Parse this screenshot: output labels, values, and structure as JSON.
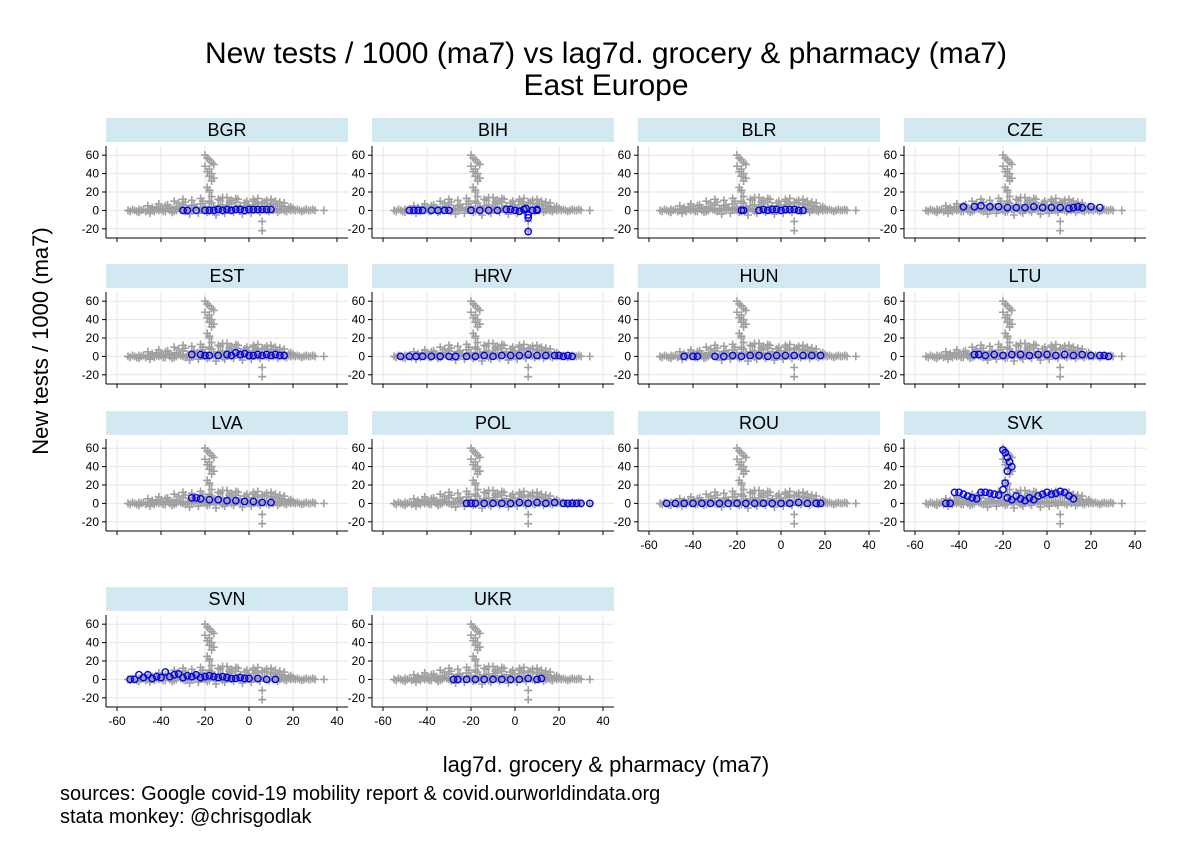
{
  "chart_data": {
    "type": "scatter",
    "title": "New tests / 1000 (ma7) vs lag7d. grocery & pharmacy (ma7)",
    "subtitle": "East Europe",
    "xlabel": "lag7d. grocery & pharmacy (ma7)",
    "ylabel": "New tests / 1000 (ma7)",
    "xlim": [
      -65,
      45
    ],
    "ylim": [
      -30,
      70
    ],
    "x_ticks": [
      "-60",
      "-40",
      "-20",
      "0",
      "20",
      "40"
    ],
    "y_ticks": [
      "60",
      "40",
      "20",
      "0",
      "-20"
    ],
    "grid": true,
    "background_series_marker": "plus",
    "highlight_series_marker": "circle",
    "colors": {
      "background": "#a0a0a0",
      "highlight": "#0000ee",
      "panel_header": "#d3e9f1",
      "grid": "#e6e6e6"
    },
    "note_lines": [
      "sources: Google covid-19 mobility report & covid.ourworldindata.org",
      "stata monkey: @chrisgodlak"
    ],
    "panels": [
      {
        "name": "BGR",
        "x": [
          -30,
          -28,
          -24,
          -20,
          -18,
          -16,
          -14,
          -12,
          -10,
          -8,
          -6,
          -4,
          -2,
          0,
          2,
          4,
          6,
          8,
          10
        ],
        "y": [
          0,
          0,
          0,
          0,
          0,
          0,
          1,
          0,
          1,
          0,
          1,
          1,
          0,
          1,
          1,
          1,
          1,
          1,
          1
        ]
      },
      {
        "name": "BIH",
        "x": [
          -48,
          -46,
          -44,
          -42,
          -38,
          -35,
          -32,
          -30,
          -20,
          -16,
          -12,
          -8,
          -4,
          -2,
          0,
          2,
          4,
          5,
          6,
          6,
          6,
          8,
          10,
          10
        ],
        "y": [
          0,
          0,
          0,
          0,
          0,
          0,
          0,
          0,
          0,
          0,
          0,
          0,
          1,
          1,
          0,
          -1,
          1,
          2,
          -5,
          -8,
          -23,
          0,
          1,
          0
        ]
      },
      {
        "name": "BLR",
        "x": [
          -18,
          -17,
          -10,
          -8,
          -6,
          -4,
          -2,
          0,
          2,
          4,
          6,
          8,
          10
        ],
        "y": [
          0,
          0,
          0,
          1,
          0,
          1,
          1,
          0,
          1,
          1,
          1,
          0,
          0
        ]
      },
      {
        "name": "CZE",
        "x": [
          -38,
          -33,
          -30,
          -26,
          -22,
          -18,
          -14,
          -10,
          -6,
          -2,
          2,
          6,
          10,
          12,
          14,
          16,
          20,
          24
        ],
        "y": [
          4,
          4,
          5,
          4,
          4,
          3,
          3,
          3,
          4,
          3,
          3,
          3,
          2,
          3,
          4,
          3,
          4,
          3
        ]
      },
      {
        "name": "EST",
        "x": [
          -26,
          -22,
          -20,
          -18,
          -14,
          -10,
          -8,
          -6,
          -4,
          -2,
          0,
          2,
          4,
          6,
          8,
          10,
          12,
          14,
          16
        ],
        "y": [
          2,
          2,
          1,
          1,
          1,
          2,
          1,
          4,
          2,
          3,
          1,
          1,
          2,
          1,
          2,
          1,
          2,
          1,
          1
        ]
      },
      {
        "name": "HRV",
        "x": [
          -52,
          -48,
          -45,
          -42,
          -38,
          -34,
          -30,
          -27,
          -22,
          -18,
          -14,
          -10,
          -6,
          -2,
          2,
          6,
          10,
          14,
          18,
          20,
          22,
          24,
          26
        ],
        "y": [
          0,
          0,
          0,
          0,
          0,
          0,
          0,
          0,
          0,
          0,
          1,
          0,
          1,
          1,
          1,
          2,
          1,
          1,
          1,
          1,
          0,
          1,
          0
        ]
      },
      {
        "name": "HUN",
        "x": [
          -44,
          -40,
          -38,
          -30,
          -26,
          -22,
          -18,
          -14,
          -10,
          -6,
          -2,
          2,
          6,
          10,
          14,
          18
        ],
        "y": [
          0,
          0,
          0,
          0,
          0,
          1,
          0,
          1,
          1,
          0,
          1,
          1,
          1,
          1,
          1,
          1
        ]
      },
      {
        "name": "LTU",
        "x": [
          -33,
          -31,
          -28,
          -24,
          -20,
          -16,
          -12,
          -8,
          -4,
          0,
          4,
          8,
          12,
          16,
          20,
          24,
          26,
          28
        ],
        "y": [
          2,
          2,
          1,
          2,
          1,
          2,
          2,
          1,
          2,
          2,
          1,
          2,
          1,
          2,
          1,
          1,
          1,
          0
        ]
      },
      {
        "name": "LVA",
        "x": [
          -26,
          -24,
          -22,
          -18,
          -14,
          -10,
          -6,
          -2,
          2,
          6,
          10
        ],
        "y": [
          6,
          6,
          5,
          4,
          4,
          3,
          3,
          2,
          2,
          1,
          1
        ]
      },
      {
        "name": "POL",
        "x": [
          -22,
          -20,
          -18,
          -14,
          -10,
          -6,
          -2,
          2,
          6,
          10,
          14,
          18,
          22,
          24,
          26,
          28,
          30,
          34
        ],
        "y": [
          0,
          0,
          0,
          0,
          0,
          0,
          0,
          1,
          0,
          1,
          0,
          1,
          0,
          0,
          0,
          0,
          0,
          0
        ]
      },
      {
        "name": "ROU",
        "x": [
          -52,
          -48,
          -44,
          -40,
          -36,
          -32,
          -28,
          -24,
          -20,
          -16,
          -12,
          -8,
          -4,
          0,
          4,
          8,
          12,
          16,
          18
        ],
        "y": [
          0,
          0,
          0,
          0,
          0,
          0,
          0,
          0,
          0,
          0,
          0,
          0,
          0,
          0,
          0,
          1,
          0,
          0,
          0
        ]
      },
      {
        "name": "SVK",
        "x": [
          -46,
          -44,
          -42,
          -40,
          -38,
          -36,
          -34,
          -32,
          -30,
          -28,
          -26,
          -24,
          -22,
          -20,
          -19,
          -18,
          -17,
          -16,
          -18,
          -19,
          -20,
          -18,
          -16,
          -14,
          -12,
          -10,
          -8,
          -6,
          -4,
          -2,
          0,
          2,
          4,
          6,
          8,
          10,
          12
        ],
        "y": [
          0,
          0,
          12,
          12,
          10,
          8,
          6,
          5,
          12,
          12,
          11,
          10,
          9,
          58,
          55,
          50,
          45,
          40,
          35,
          22,
          15,
          6,
          4,
          8,
          5,
          3,
          6,
          4,
          8,
          10,
          12,
          10,
          11,
          13,
          12,
          8,
          5
        ]
      },
      {
        "name": "SVN",
        "x": [
          -54,
          -52,
          -50,
          -48,
          -46,
          -44,
          -42,
          -40,
          -38,
          -36,
          -34,
          -32,
          -30,
          -28,
          -26,
          -24,
          -22,
          -20,
          -18,
          -16,
          -14,
          -12,
          -10,
          -8,
          -6,
          -4,
          -2,
          0,
          4,
          8,
          12
        ],
        "y": [
          0,
          0,
          5,
          2,
          5,
          1,
          3,
          2,
          8,
          3,
          5,
          6,
          2,
          4,
          3,
          5,
          2,
          3,
          4,
          3,
          2,
          3,
          2,
          1,
          1,
          2,
          1,
          1,
          1,
          0,
          0
        ]
      },
      {
        "name": "UKR",
        "x": [
          -28,
          -26,
          -22,
          -18,
          -14,
          -10,
          -6,
          -2,
          2,
          6,
          10,
          12
        ],
        "y": [
          0,
          0,
          0,
          0,
          0,
          0,
          0,
          0,
          0,
          1,
          0,
          1
        ]
      }
    ],
    "background_points": {
      "x": [
        -55,
        -54,
        -53,
        -52,
        -51,
        -50,
        -49,
        -48,
        -47,
        -46,
        -45,
        -44,
        -43,
        -42,
        -41,
        -40,
        -39,
        -38,
        -37,
        -36,
        -35,
        -34,
        -33,
        -32,
        -31,
        -30,
        -29,
        -28,
        -27,
        -26,
        -25,
        -24,
        -23,
        -22,
        -21,
        -20,
        -19,
        -18,
        -17,
        -16,
        -15,
        -14,
        -13,
        -12,
        -11,
        -10,
        -9,
        -8,
        -7,
        -6,
        -5,
        -4,
        -3,
        -2,
        -1,
        0,
        1,
        2,
        3,
        4,
        5,
        6,
        7,
        8,
        9,
        10,
        11,
        12,
        13,
        14,
        15,
        16,
        17,
        18,
        19,
        20,
        21,
        22,
        23,
        24,
        25,
        26,
        27,
        28,
        29,
        30,
        34,
        -44,
        -42,
        -40,
        -38,
        -36,
        -33,
        -30,
        -28,
        -26,
        -24,
        -22,
        -20,
        -18,
        -16,
        -14,
        -12,
        -10,
        -8,
        -6,
        -4,
        -2,
        0,
        2,
        4,
        6,
        8,
        10,
        12,
        14,
        16,
        18,
        20,
        -46,
        -41,
        -37,
        -32,
        -29,
        -25,
        -21,
        -17,
        -13,
        -9,
        -5,
        -1,
        3,
        7,
        11,
        15,
        19,
        -50,
        -45,
        -39,
        -35,
        -27,
        -23,
        -19,
        -15,
        -11,
        -7,
        -3,
        1,
        5,
        9,
        13,
        17,
        -20,
        -19,
        -18,
        -17,
        -16,
        -20,
        -18,
        -19,
        -17,
        -18,
        -16,
        -17,
        -19,
        -18,
        -17,
        -18,
        -18,
        6,
        6,
        -6,
        -10,
        -14,
        -22,
        -26,
        -30,
        -34,
        2,
        4,
        8,
        10,
        12,
        14,
        16,
        -8,
        -12
      ],
      "y": [
        0,
        -1,
        1,
        0,
        -1,
        1,
        0,
        1,
        -1,
        0,
        1,
        0,
        -1,
        1,
        0,
        1,
        0,
        -1,
        2,
        0,
        1,
        -1,
        0,
        2,
        1,
        0,
        -1,
        1,
        2,
        0,
        1,
        3,
        0,
        2,
        1,
        0,
        1,
        -1,
        2,
        1,
        0,
        2,
        1,
        -1,
        0,
        1,
        2,
        0,
        1,
        3,
        2,
        1,
        0,
        2,
        1,
        0,
        1,
        2,
        1,
        0,
        1,
        2,
        1,
        0,
        -1,
        1,
        0,
        1,
        2,
        0,
        1,
        0,
        -1,
        1,
        0,
        1,
        0,
        1,
        0,
        -1,
        0,
        1,
        0,
        0,
        1,
        0,
        0,
        3,
        4,
        2,
        5,
        3,
        4,
        6,
        2,
        5,
        3,
        7,
        4,
        8,
        3,
        5,
        6,
        4,
        7,
        9,
        5,
        8,
        6,
        10,
        7,
        9,
        8,
        6,
        7,
        5,
        4,
        3,
        2,
        5,
        7,
        6,
        8,
        9,
        6,
        10,
        8,
        11,
        9,
        12,
        10,
        8,
        9,
        7,
        5,
        4,
        -2,
        -3,
        -1,
        -2,
        -4,
        -3,
        -2,
        -5,
        -3,
        -2,
        -4,
        -3,
        -2,
        -1,
        -2,
        -1,
        60,
        57,
        55,
        52,
        50,
        48,
        45,
        42,
        40,
        37,
        35,
        32,
        25,
        20,
        15,
        22,
        10,
        -12,
        -22,
        13,
        14,
        12,
        13,
        11,
        12,
        10,
        12,
        13,
        11,
        12,
        10,
        9,
        8,
        11,
        14
      ]
    }
  }
}
